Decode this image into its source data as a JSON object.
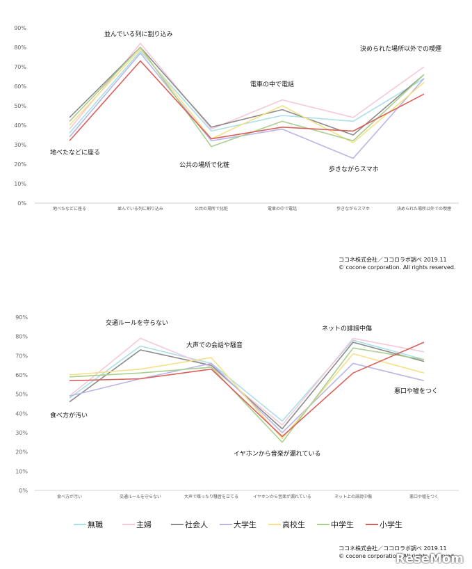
{
  "colors": {
    "無職": "#a9dfe8",
    "主婦": "#f7c8d9",
    "社会人": "#8a8a8a",
    "大学生": "#b9b6e6",
    "高校生": "#f5e08a",
    "中学生": "#a9cf8e",
    "小学生": "#d9605a"
  },
  "legend": [
    "無職",
    "主婦",
    "社会人",
    "大学生",
    "高校生",
    "中学生",
    "小学生"
  ],
  "credits": [
    {
      "line1": "ココネ株式会社／ココロラボ調べ 2019.11",
      "line2": "© cocone corporation. All rights reserved."
    },
    {
      "line1": "ココネ株式会社／ココロラボ調べ 2019.11",
      "line2": "© cocone corporation. All rights reserved."
    }
  ],
  "watermark": "ReseMom",
  "chart_data": [
    {
      "type": "line",
      "title": "",
      "categories": [
        "地べたなどに座る",
        "並んでいる列に割り込み",
        "公共の場所で化粧",
        "電車の中で電話",
        "歩きながらスマホ",
        "決められた場所以外での喫煙"
      ],
      "ylim": [
        0,
        90
      ],
      "yticks": [
        "0%",
        "10%",
        "20%",
        "30%",
        "40%",
        "50%",
        "60%",
        "70%",
        "80%",
        "90%"
      ],
      "series": [
        {
          "name": "無職",
          "values": [
            36,
            78,
            37,
            45,
            42,
            64
          ]
        },
        {
          "name": "主婦",
          "values": [
            38,
            82,
            38,
            53,
            44,
            70
          ]
        },
        {
          "name": "社会人",
          "values": [
            44,
            80,
            39,
            48,
            35,
            66
          ]
        },
        {
          "name": "大学生",
          "values": [
            34,
            77,
            32,
            38,
            23,
            64
          ]
        },
        {
          "name": "高校生",
          "values": [
            40,
            79,
            33,
            50,
            31,
            62
          ]
        },
        {
          "name": "中学生",
          "values": [
            42,
            80,
            29,
            42,
            32,
            66
          ]
        },
        {
          "name": "小学生",
          "values": [
            32,
            73,
            33,
            39,
            37,
            56
          ]
        }
      ],
      "annotations": [
        "地べたなどに座る",
        "並んでいる列に割り込み",
        "公共の場所で化粧",
        "電車の中で電話",
        "歩きながらスマホ",
        "決められた場所以外での喫煙"
      ]
    },
    {
      "type": "line",
      "title": "",
      "categories": [
        "食べ方が汚い",
        "交通ルールを守らない",
        "大声で喋ったり騒音を立てる",
        "イヤホンから音楽が漏れている",
        "ネット上の誹謗中傷",
        "悪口や嘘をつく"
      ],
      "ylim": [
        0,
        90
      ],
      "yticks": [
        "0%",
        "10%",
        "20%",
        "30%",
        "40%",
        "50%",
        "60%",
        "70%",
        "80%",
        "90%"
      ],
      "series": [
        {
          "name": "無職",
          "values": [
            48,
            75,
            66,
            36,
            78,
            68
          ]
        },
        {
          "name": "主婦",
          "values": [
            49,
            79,
            64,
            34,
            79,
            72
          ]
        },
        {
          "name": "社会人",
          "values": [
            46,
            73,
            65,
            32,
            77,
            67
          ]
        },
        {
          "name": "大学生",
          "values": [
            49,
            58,
            66,
            30,
            66,
            57
          ]
        },
        {
          "name": "高校生",
          "values": [
            60,
            63,
            69,
            27,
            71,
            61
          ]
        },
        {
          "name": "中学生",
          "values": [
            59,
            61,
            64,
            25,
            74,
            68
          ]
        },
        {
          "name": "小学生",
          "values": [
            57,
            58,
            63,
            28,
            61,
            77
          ]
        }
      ],
      "annotations": [
        "交通ルールを守らない",
        "大声での会話や騒音",
        "ネットの誹謗中傷",
        "悪口や嘘をつく",
        "食べ方が汚い",
        "イヤホンから音楽が漏れている"
      ]
    }
  ]
}
